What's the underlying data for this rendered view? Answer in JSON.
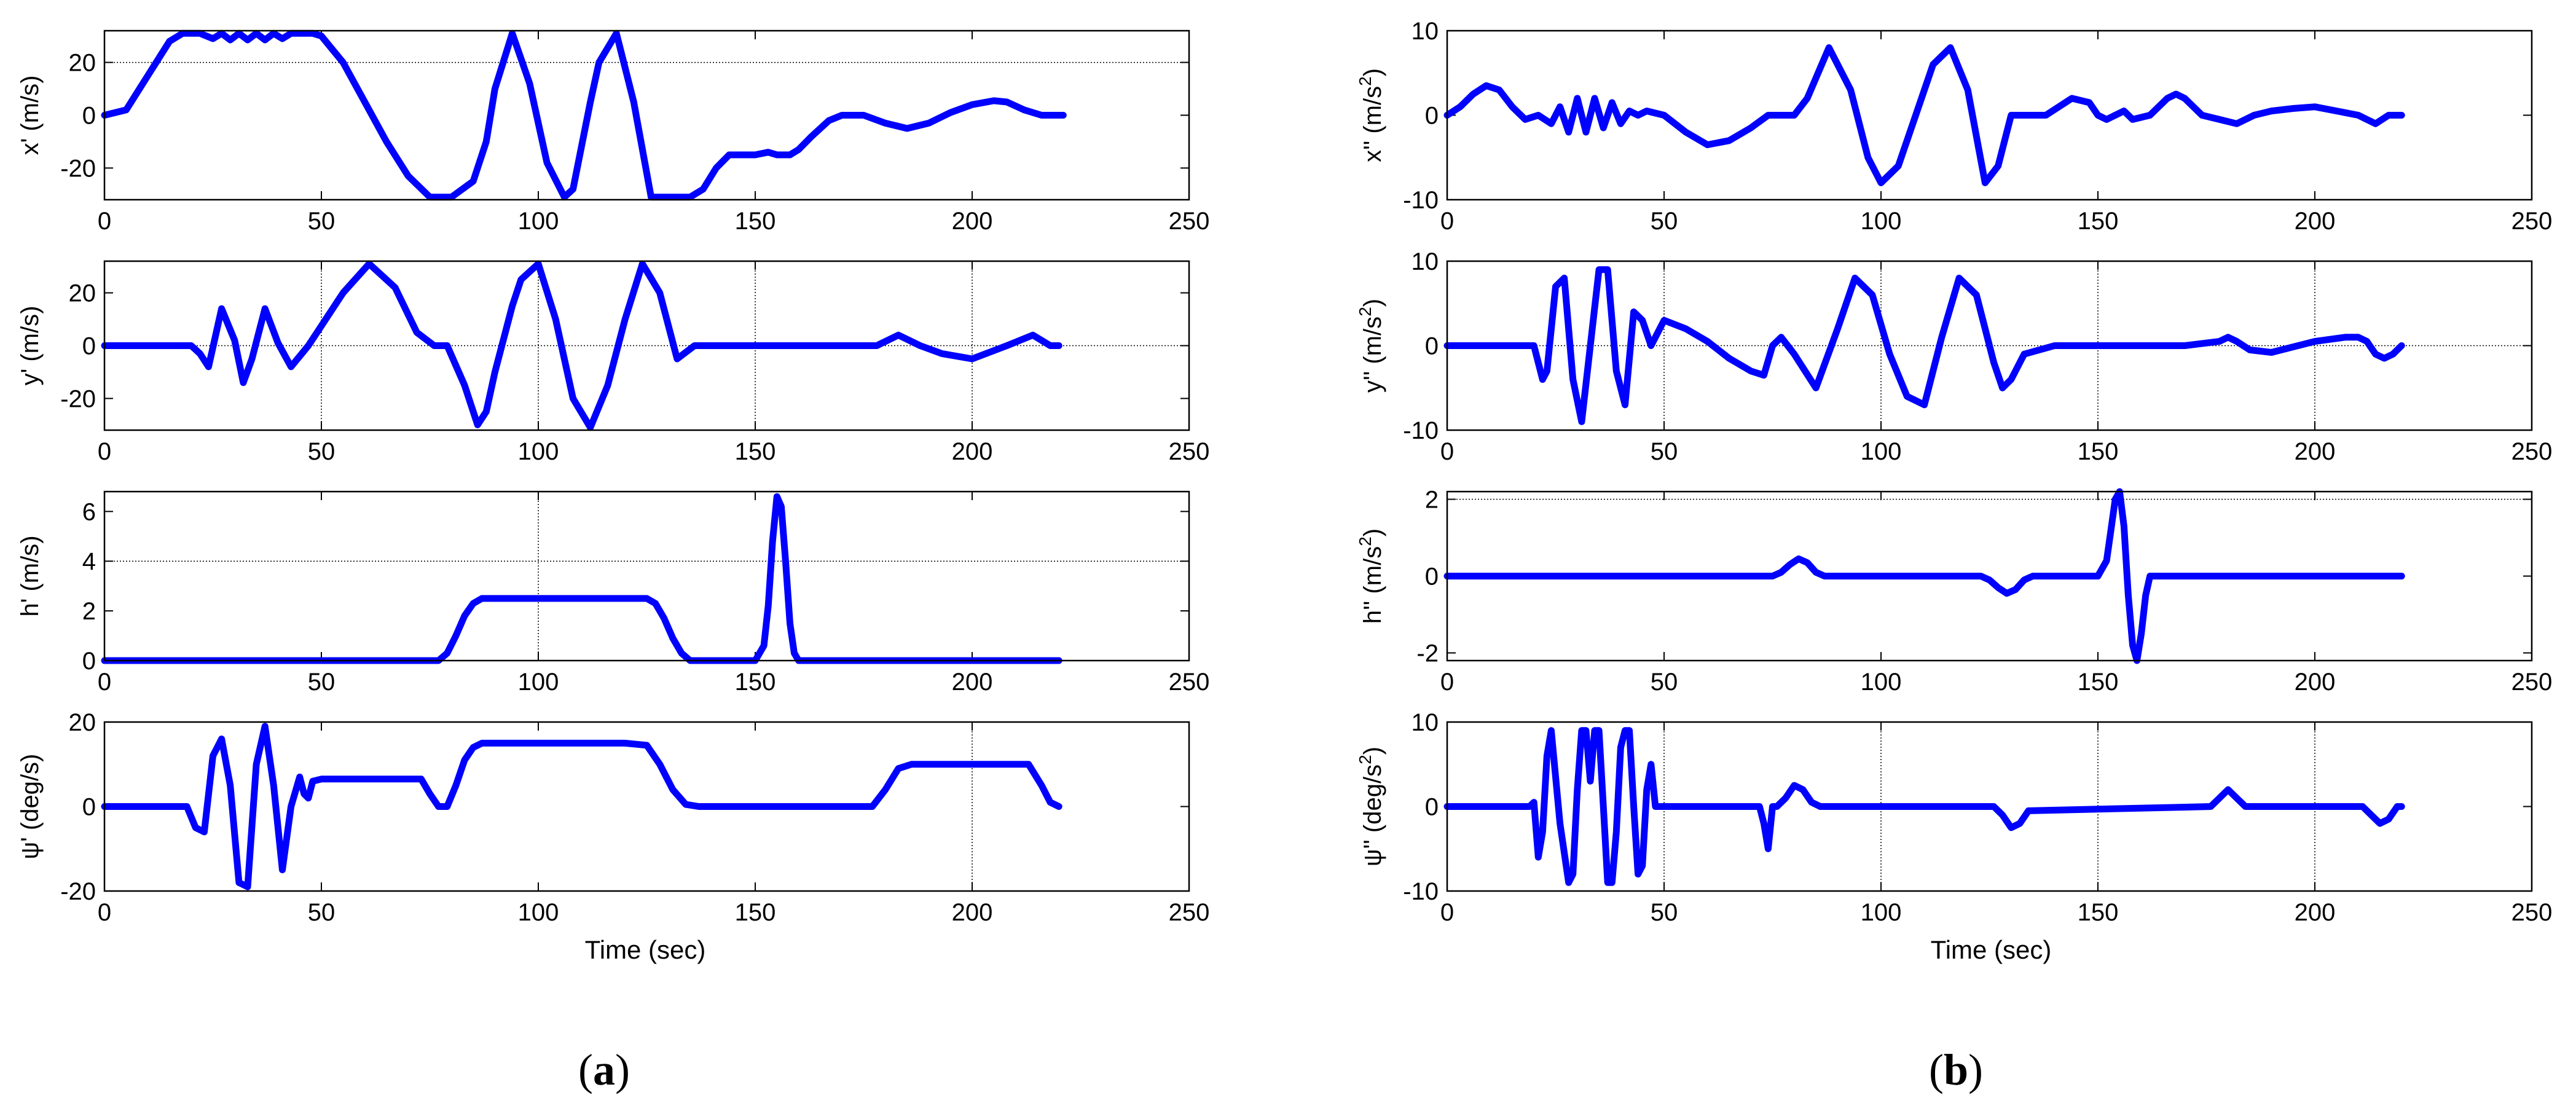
{
  "figure": {
    "panel_labels": [
      {
        "open": "(",
        "letter": "a",
        "close": ")"
      },
      {
        "open": "(",
        "letter": "b",
        "close": ")"
      }
    ],
    "xlabel": "Time (sec)",
    "x_ticks": [
      "0",
      "50",
      "100",
      "150",
      "200",
      "250"
    ],
    "line_color": "#0000ff"
  },
  "chart_data": [
    {
      "type": "line",
      "panel": "a",
      "row": 1,
      "ylabel": "x' (m/s)",
      "ylabel_parts": {
        "base": "x' (m/s)",
        "sup": "",
        "tail": ""
      },
      "xlim": [
        0,
        250
      ],
      "ylim": [
        -32,
        32
      ],
      "yticks": [
        -20,
        0,
        20
      ],
      "ygrid": [
        20
      ],
      "xgrid": [],
      "x": [
        0,
        5,
        10,
        15,
        18,
        22,
        25,
        27,
        29,
        31,
        33,
        35,
        37,
        39,
        41,
        43,
        45,
        48,
        50,
        55,
        60,
        65,
        70,
        75,
        80,
        85,
        88,
        90,
        94,
        98,
        102,
        106,
        108,
        112,
        114,
        118,
        122,
        126,
        130,
        135,
        138,
        141,
        144,
        147,
        150,
        153,
        155,
        158,
        160,
        163,
        167,
        170,
        175,
        180,
        185,
        190,
        195,
        200,
        205,
        208,
        212,
        216,
        219,
        221
      ],
      "series": [
        {
          "values": [
            0,
            2,
            15,
            28,
            31,
            31,
            29,
            31,
            28.5,
            31,
            28.5,
            31,
            28.5,
            31,
            29,
            31,
            31,
            31,
            30,
            20,
            5,
            -10,
            -23,
            -31,
            -31,
            -25,
            -10,
            10,
            31,
            12,
            -18,
            -31,
            -28,
            5,
            20,
            31,
            5,
            -31,
            -31,
            -31,
            -28,
            -20,
            -15,
            -15,
            -15,
            -14,
            -15,
            -15,
            -13,
            -8,
            -2,
            0,
            0,
            -3,
            -5,
            -3,
            1,
            4,
            5.5,
            5,
            2,
            0,
            0,
            0
          ]
        }
      ]
    },
    {
      "type": "line",
      "panel": "a",
      "row": 2,
      "ylabel": "y' (m/s)",
      "ylabel_parts": {
        "base": "y' (m/s)",
        "sup": "",
        "tail": ""
      },
      "xlim": [
        0,
        250
      ],
      "ylim": [
        -32,
        32
      ],
      "yticks": [
        -20,
        0,
        20
      ],
      "ygrid": [
        0
      ],
      "xgrid": [
        50,
        100,
        150,
        200
      ],
      "x": [
        0,
        20,
        22,
        24,
        27,
        30,
        32,
        34,
        37,
        40,
        43,
        47,
        55,
        61,
        67,
        72,
        76,
        79,
        83,
        86,
        88,
        90,
        94,
        96,
        100,
        104,
        108,
        112,
        116,
        120,
        124,
        128,
        132,
        136,
        140,
        160,
        178,
        183,
        188,
        193,
        200,
        208,
        214,
        218,
        220
      ],
      "series": [
        {
          "values": [
            0,
            0,
            -3,
            -8,
            14,
            2,
            -14,
            -5,
            14,
            1,
            -8,
            0,
            20,
            31,
            22,
            5,
            0,
            0,
            -15,
            -30,
            -25,
            -10,
            15,
            25,
            31,
            10,
            -20,
            -31,
            -15,
            10,
            31,
            20,
            -5,
            0,
            0,
            0,
            0,
            4,
            0,
            -3,
            -5,
            0,
            4,
            0,
            0
          ]
        }
      ]
    },
    {
      "type": "line",
      "panel": "a",
      "row": 3,
      "ylabel": "h' (m/s)",
      "ylabel_parts": {
        "base": "h' (m/s)",
        "sup": "",
        "tail": ""
      },
      "xlim": [
        0,
        250
      ],
      "ylim": [
        0,
        6.8
      ],
      "yticks": [
        0,
        2,
        4,
        6
      ],
      "ygrid": [
        4
      ],
      "xgrid": [
        100
      ],
      "x": [
        0,
        77,
        79,
        81,
        83,
        85,
        87,
        90,
        100,
        110,
        120,
        125,
        127,
        129,
        131,
        133,
        135,
        150,
        152,
        153,
        154,
        155,
        156,
        157,
        158,
        159,
        160,
        170,
        220
      ],
      "series": [
        {
          "values": [
            0,
            0,
            0.3,
            1.0,
            1.8,
            2.3,
            2.5,
            2.5,
            2.5,
            2.5,
            2.5,
            2.5,
            2.3,
            1.7,
            0.9,
            0.3,
            0,
            0,
            0.6,
            2.2,
            4.8,
            6.6,
            6.2,
            4.0,
            1.5,
            0.3,
            0,
            0,
            0
          ]
        }
      ]
    },
    {
      "type": "line",
      "panel": "a",
      "row": 4,
      "ylabel": "ψ' (deg/s)",
      "ylabel_parts": {
        "base": "ψ' (deg/s)",
        "sup": "",
        "tail": ""
      },
      "xlim": [
        0,
        250
      ],
      "ylim": [
        -20,
        20
      ],
      "yticks": [
        -20,
        0,
        20
      ],
      "ygrid": [],
      "xgrid": [
        200
      ],
      "x": [
        0,
        19,
        21,
        23,
        25,
        27,
        29,
        31,
        33,
        35,
        37,
        39,
        41,
        43,
        45,
        46,
        47,
        48,
        50,
        60,
        73,
        75,
        77,
        79,
        81,
        83,
        85,
        87,
        90,
        100,
        110,
        120,
        125,
        128,
        131,
        134,
        137,
        160,
        177,
        180,
        183,
        186,
        200,
        210,
        213,
        216,
        218,
        220
      ],
      "series": [
        {
          "values": [
            0,
            0,
            -5,
            -6,
            12,
            16,
            5,
            -18,
            -19,
            10,
            19,
            5,
            -15,
            0,
            7,
            3,
            2,
            6,
            6.5,
            6.5,
            6.5,
            3,
            0,
            0,
            5,
            11,
            14,
            15,
            15,
            15,
            15,
            15,
            14.5,
            10,
            4,
            0.5,
            0,
            0,
            0,
            4,
            9,
            10,
            10,
            10,
            10,
            5,
            1,
            0
          ]
        }
      ]
    },
    {
      "type": "line",
      "panel": "b",
      "row": 1,
      "ylabel": "x'' (m/s2)",
      "ylabel_parts": {
        "base": "x'' (m/s",
        "sup": "2",
        "tail": ")"
      },
      "xlim": [
        0,
        250
      ],
      "ylim": [
        -10,
        10
      ],
      "yticks": [
        -10,
        0,
        10
      ],
      "ygrid": [],
      "xgrid": [],
      "x": [
        0,
        3,
        6,
        9,
        12,
        15,
        18,
        21,
        24,
        26,
        28,
        30,
        32,
        34,
        36,
        38,
        40,
        42,
        44,
        46,
        50,
        55,
        60,
        65,
        70,
        74,
        77,
        80,
        83,
        88,
        93,
        97,
        100,
        104,
        108,
        112,
        116,
        120,
        124,
        127,
        130,
        134,
        138,
        144,
        148,
        150,
        152,
        154,
        156,
        158,
        162,
        166,
        168,
        170,
        174,
        178,
        182,
        186,
        190,
        195,
        200,
        205,
        210,
        214,
        217,
        220
      ],
      "series": [
        {
          "values": [
            0,
            1,
            2.5,
            3.5,
            3,
            1,
            -0.5,
            0,
            -1,
            1,
            -2,
            2,
            -2,
            2,
            -1.5,
            1.5,
            -1,
            0.5,
            0,
            0.5,
            0,
            -2,
            -3.5,
            -3,
            -1.5,
            0,
            0,
            0,
            2,
            8,
            3,
            -5,
            -8,
            -6,
            0,
            6,
            8,
            3,
            -8,
            -6,
            0,
            0,
            0,
            2,
            1.5,
            0,
            -0.5,
            0,
            0.5,
            -0.5,
            0,
            2,
            2.5,
            2,
            0,
            -0.5,
            -1,
            0,
            0.5,
            0.8,
            1,
            0.5,
            0,
            -1,
            0,
            0
          ]
        }
      ]
    },
    {
      "type": "line",
      "panel": "b",
      "row": 2,
      "ylabel": "y'' (m/s2)",
      "ylabel_parts": {
        "base": "y'' (m/s",
        "sup": "2",
        "tail": ")"
      },
      "xlim": [
        0,
        250
      ],
      "ylim": [
        -10,
        10
      ],
      "yticks": [
        -10,
        0,
        10
      ],
      "ygrid": [
        0
      ],
      "xgrid": [
        50,
        100,
        150,
        200
      ],
      "x": [
        0,
        20,
        22,
        23,
        25,
        27,
        29,
        31,
        33,
        35,
        37,
        39,
        41,
        43,
        45,
        47,
        50,
        55,
        60,
        65,
        70,
        73,
        75,
        77,
        80,
        85,
        90,
        94,
        98,
        102,
        106,
        110,
        114,
        118,
        122,
        126,
        128,
        130,
        133,
        140,
        170,
        178,
        180,
        182,
        185,
        190,
        200,
        207,
        210,
        212,
        214,
        216,
        218,
        220
      ],
      "series": [
        {
          "values": [
            0,
            0,
            -4,
            -3,
            7,
            8,
            -4,
            -9,
            0,
            9,
            9,
            -3,
            -7,
            4,
            3,
            0,
            3,
            2,
            0.5,
            -1.5,
            -3,
            -3.5,
            0,
            1,
            -1,
            -5,
            2,
            8,
            6,
            -1,
            -6,
            -7,
            1,
            8,
            6,
            -2,
            -5,
            -4,
            -1,
            0,
            0,
            0.5,
            1,
            0.5,
            -0.5,
            -0.8,
            0.5,
            1,
            1,
            0.5,
            -1,
            -1.5,
            -1,
            0
          ]
        }
      ]
    },
    {
      "type": "line",
      "panel": "b",
      "row": 3,
      "ylabel": "h'' (m/s2)",
      "ylabel_parts": {
        "base": "h'' (m/s",
        "sup": "2",
        "tail": ")"
      },
      "xlim": [
        0,
        250
      ],
      "ylim": [
        -2.2,
        2.2
      ],
      "yticks": [
        -2,
        0,
        2
      ],
      "ygrid": [
        2
      ],
      "xgrid": [],
      "x": [
        0,
        75,
        77,
        79,
        81,
        83,
        85,
        87,
        123,
        125,
        127,
        129,
        131,
        133,
        135,
        150,
        152,
        153,
        154,
        155,
        156,
        157,
        158,
        159,
        160,
        161,
        162,
        170,
        220
      ],
      "series": [
        {
          "values": [
            0,
            0,
            0.1,
            0.3,
            0.45,
            0.35,
            0.1,
            0,
            0,
            -0.1,
            -0.3,
            -0.45,
            -0.35,
            -0.1,
            0,
            0,
            0.4,
            1.2,
            2.0,
            2.2,
            1.3,
            -0.5,
            -1.8,
            -2.2,
            -1.5,
            -0.5,
            0,
            0,
            0
          ]
        }
      ]
    },
    {
      "type": "line",
      "panel": "b",
      "row": 4,
      "ylabel": "ψ'' (deg/s2)",
      "ylabel_parts": {
        "base": "ψ'' (deg/s",
        "sup": "2",
        "tail": ")"
      },
      "xlim": [
        0,
        250
      ],
      "ylim": [
        -10,
        10
      ],
      "yticks": [
        -10,
        0,
        10
      ],
      "ygrid": [],
      "xgrid": [
        50,
        100,
        150,
        200
      ],
      "x": [
        0,
        19,
        20,
        21,
        22,
        23,
        24,
        26,
        28,
        29,
        30,
        31,
        32,
        33,
        34,
        35,
        36,
        37,
        38,
        39,
        40,
        41,
        42,
        43,
        44,
        45,
        46,
        47,
        48,
        49,
        50,
        72,
        73,
        74,
        75,
        76,
        78,
        80,
        82,
        84,
        86,
        126,
        128,
        130,
        132,
        134,
        176,
        178,
        180,
        182,
        184,
        211,
        213,
        215,
        217,
        219,
        220
      ],
      "series": [
        {
          "values": [
            0,
            0,
            0.5,
            -6,
            -3,
            6,
            9,
            -2,
            -9,
            -8,
            2,
            9,
            9,
            3,
            9,
            9,
            0,
            -9,
            -9,
            -3,
            7,
            9,
            9,
            0,
            -8,
            -7,
            2,
            5,
            0,
            0,
            0,
            0,
            -2,
            -5,
            0,
            0,
            1,
            2.5,
            2,
            0.5,
            0,
            0,
            -1,
            -2.5,
            -2,
            -0.5,
            0,
            1,
            2,
            1,
            0,
            0,
            -1,
            -2,
            -1.5,
            0,
            0
          ]
        }
      ]
    }
  ]
}
